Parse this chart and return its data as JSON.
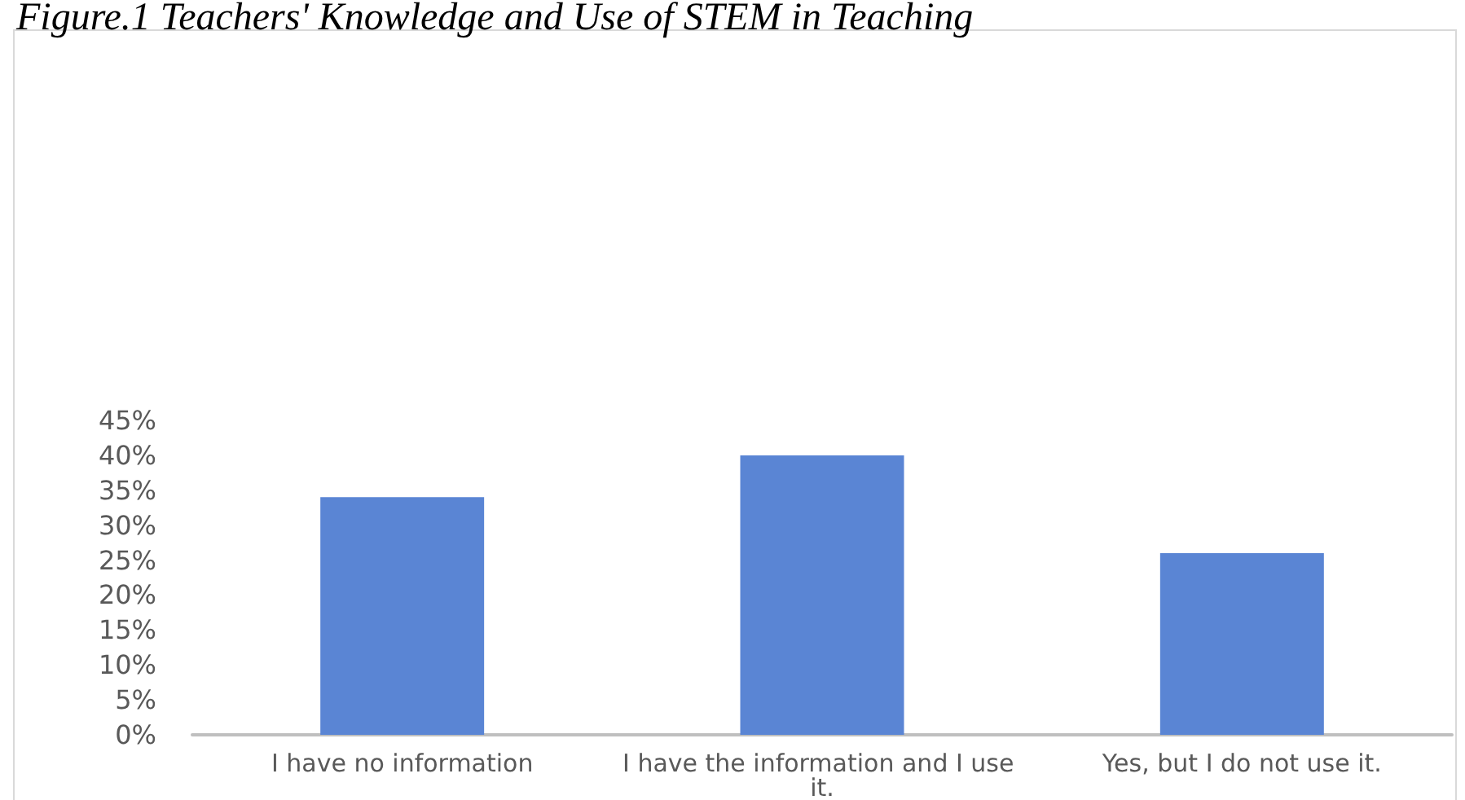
{
  "chart_data": {
    "type": "bar",
    "title": "Figure.1 Teachers' Knowledge and Use of STEM in Teaching",
    "categories": [
      "I have no information",
      "I have the information and I use it.",
      "Yes, but I do not use it."
    ],
    "values": [
      34,
      40,
      26
    ],
    "color": "#5a85d4",
    "ylim": [
      0,
      45
    ],
    "yticks": [
      {
        "value": 0,
        "label": "0%"
      },
      {
        "value": 5,
        "label": "5%"
      },
      {
        "value": 10,
        "label": "10%"
      },
      {
        "value": 15,
        "label": "15%"
      },
      {
        "value": 20,
        "label": "20%"
      },
      {
        "value": 25,
        "label": "25%"
      },
      {
        "value": 30,
        "label": "30%"
      },
      {
        "value": 35,
        "label": "35%"
      },
      {
        "value": 40,
        "label": "40%"
      },
      {
        "value": 45,
        "label": "45%"
      }
    ],
    "grid": false
  }
}
